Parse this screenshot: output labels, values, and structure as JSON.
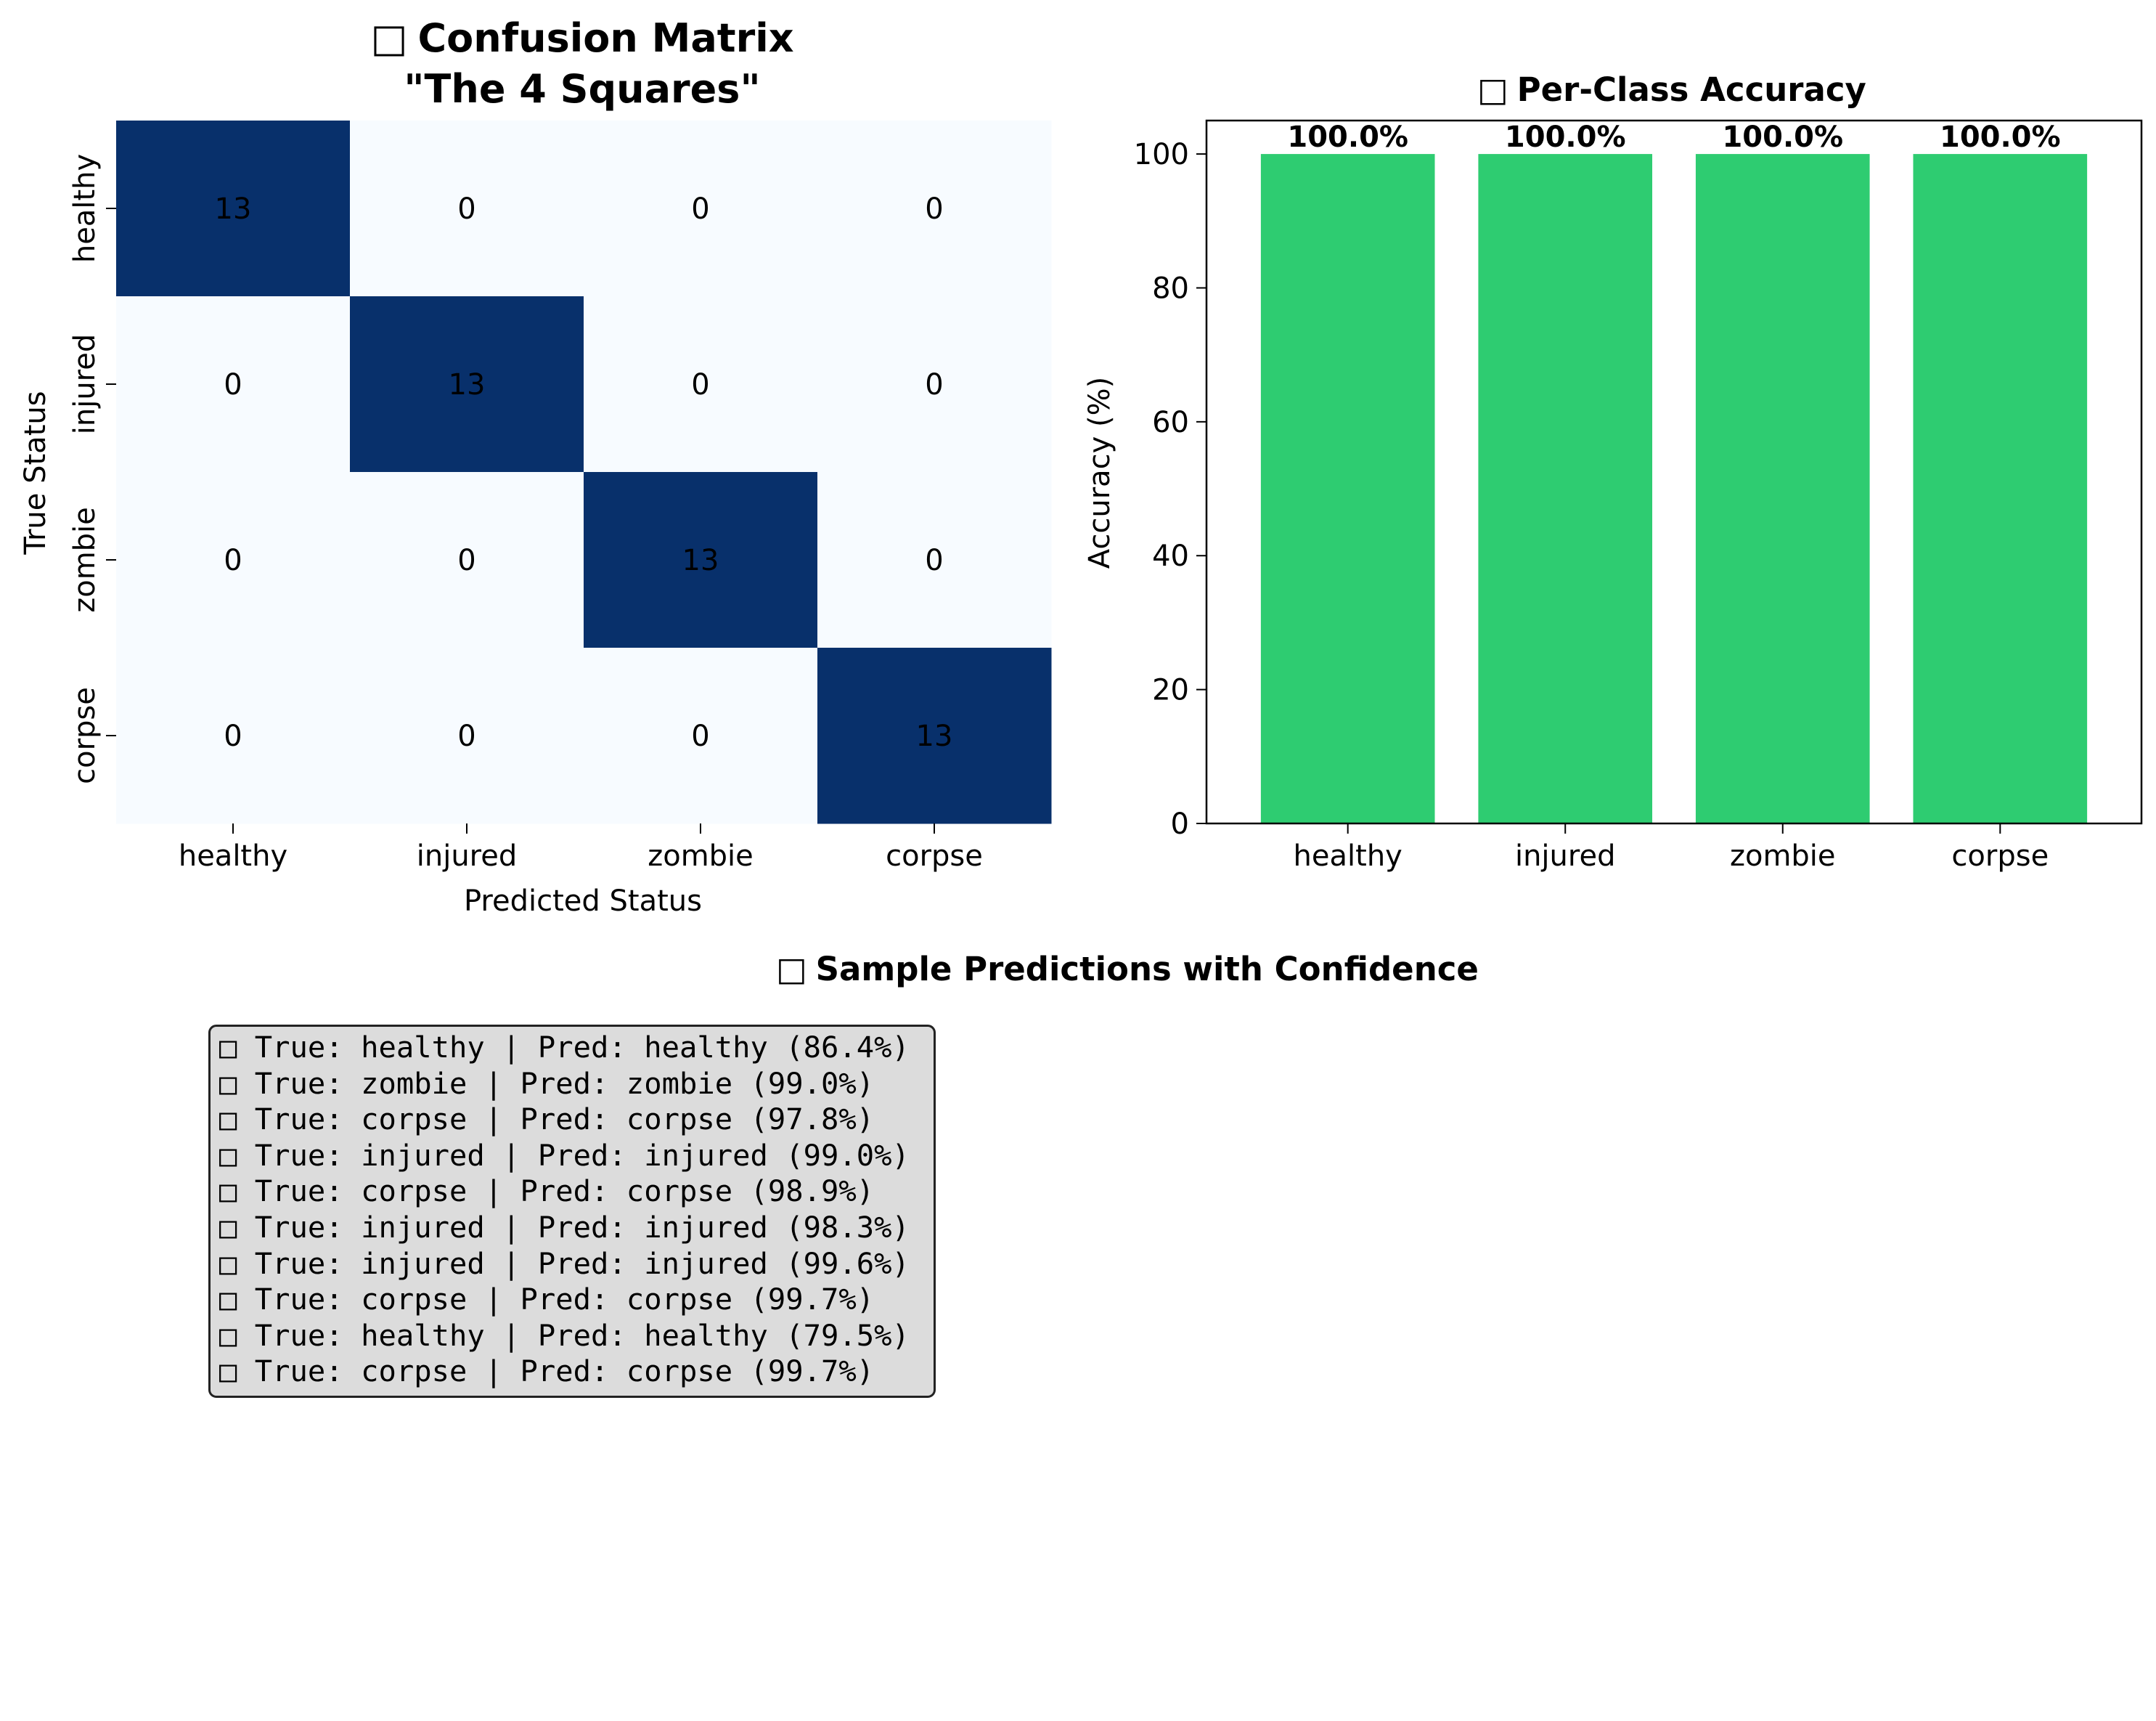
{
  "chart_data": [
    {
      "type": "heatmap",
      "title_icon": "□",
      "title": "Confusion Matrix",
      "subtitle": "\"The 4 Squares\"",
      "xlabel": "Predicted Status",
      "ylabel": "True Status",
      "x_categories": [
        "healthy",
        "injured",
        "zombie",
        "corpse"
      ],
      "y_categories": [
        "healthy",
        "injured",
        "zombie",
        "corpse"
      ],
      "values": [
        [
          13,
          0,
          0,
          0
        ],
        [
          0,
          13,
          0,
          0
        ],
        [
          0,
          0,
          13,
          0
        ],
        [
          0,
          0,
          0,
          13
        ]
      ],
      "colormap": "Blues",
      "colors": {
        "high": "#08306b",
        "low": "#f7fbff",
        "text_on_high": "#ffffff",
        "text_on_low": "#000000"
      },
      "grid": false,
      "colorbar": false
    },
    {
      "type": "bar",
      "title_icon": "□",
      "title": "Per-Class Accuracy",
      "xlabel": "",
      "ylabel": "Accuracy (%)",
      "categories": [
        "healthy",
        "injured",
        "zombie",
        "corpse"
      ],
      "values": [
        100.0,
        100.0,
        100.0,
        100.0
      ],
      "data_labels": [
        "100.0%",
        "100.0%",
        "100.0%",
        "100.0%"
      ],
      "ylim": [
        0,
        105
      ],
      "yticks": [
        0,
        20,
        40,
        60,
        80,
        100
      ],
      "bar_color": "#2ecc71",
      "grid": false
    }
  ],
  "samples": {
    "title_icon": "□",
    "title": "Sample Predictions with Confidence",
    "box_color": "#dcdcdc",
    "lines": [
      "□ True: healthy | Pred: healthy (86.4%)",
      "□ True: zombie | Pred: zombie (99.0%)",
      "□ True: corpse | Pred: corpse (97.8%)",
      "□ True: injured | Pred: injured (99.0%)",
      "□ True: corpse | Pred: corpse (98.9%)",
      "□ True: injured | Pred: injured (98.3%)",
      "□ True: injured | Pred: injured (99.6%)",
      "□ True: corpse | Pred: corpse (99.7%)",
      "□ True: healthy | Pred: healthy (79.5%)",
      "□ True: corpse | Pred: corpse (99.7%)"
    ]
  }
}
